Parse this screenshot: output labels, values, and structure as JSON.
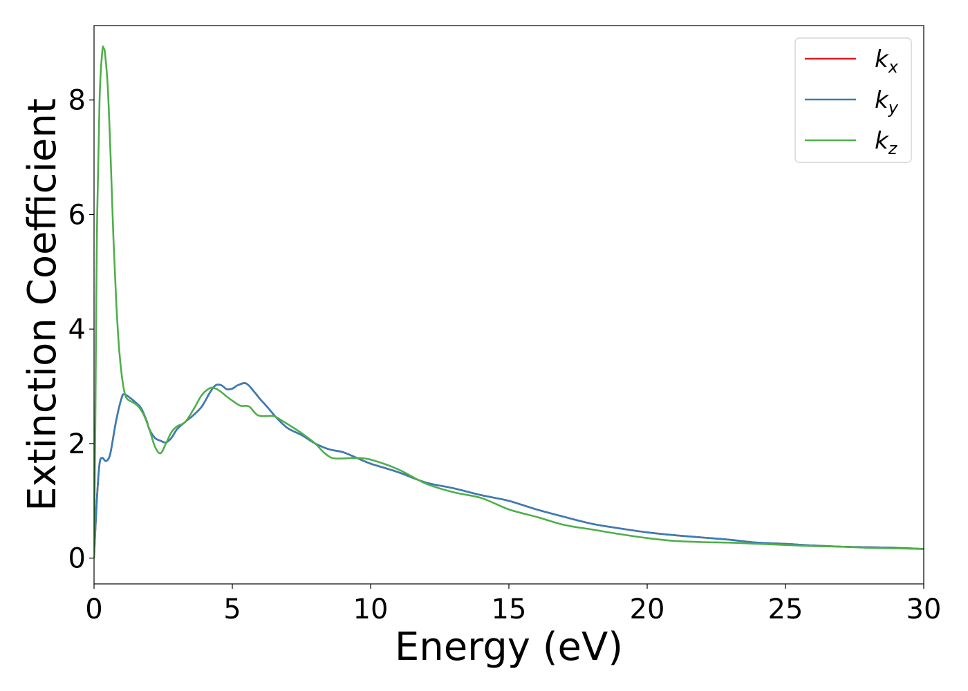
{
  "chart_data": {
    "type": "line",
    "xlabel": "Energy (eV)",
    "ylabel": "Extinction Coefficient",
    "xlim": [
      0,
      30
    ],
    "ylim": [
      -0.45,
      9.3
    ],
    "xticks": [
      0,
      5,
      10,
      15,
      20,
      25,
      30
    ],
    "yticks": [
      0,
      2,
      4,
      6,
      8
    ],
    "grid": false,
    "legend_position": "top-right",
    "series": [
      {
        "name": "k_x",
        "legend_base": "k",
        "legend_sub": "x",
        "color": "#e41a1c",
        "x": [
          0,
          0.1,
          0.2,
          0.3,
          0.4,
          0.5,
          0.6,
          0.8,
          1.0,
          1.1,
          1.3,
          1.5,
          1.7,
          1.9,
          2.0,
          2.2,
          2.4,
          2.6,
          2.8,
          3.0,
          3.3,
          3.6,
          3.9,
          4.2,
          4.4,
          4.6,
          4.8,
          5.0,
          5.2,
          5.5,
          5.8,
          6.0,
          6.3,
          6.6,
          7.0,
          7.5,
          8.0,
          8.5,
          9.0,
          9.5,
          10,
          11,
          12,
          13,
          14,
          15,
          16,
          17,
          18,
          19,
          20,
          21,
          22,
          23,
          24,
          25,
          26,
          27,
          28,
          29,
          30
        ],
        "y": [
          0,
          1.0,
          1.65,
          1.75,
          1.7,
          1.72,
          1.85,
          2.4,
          2.8,
          2.86,
          2.8,
          2.72,
          2.62,
          2.4,
          2.25,
          2.1,
          2.05,
          2.02,
          2.1,
          2.25,
          2.38,
          2.5,
          2.65,
          2.9,
          3.02,
          3.02,
          2.95,
          2.96,
          3.02,
          3.05,
          2.9,
          2.78,
          2.62,
          2.45,
          2.27,
          2.15,
          2.0,
          1.9,
          1.85,
          1.75,
          1.65,
          1.5,
          1.32,
          1.22,
          1.1,
          1.0,
          0.85,
          0.72,
          0.6,
          0.52,
          0.45,
          0.4,
          0.36,
          0.32,
          0.27,
          0.25,
          0.22,
          0.2,
          0.19,
          0.18,
          0.16
        ]
      },
      {
        "name": "k_y",
        "legend_base": "k",
        "legend_sub": "y",
        "color": "#377eb8",
        "x": [
          0,
          0.1,
          0.2,
          0.3,
          0.4,
          0.5,
          0.6,
          0.8,
          1.0,
          1.1,
          1.3,
          1.5,
          1.7,
          1.9,
          2.0,
          2.2,
          2.4,
          2.6,
          2.8,
          3.0,
          3.3,
          3.6,
          3.9,
          4.2,
          4.4,
          4.6,
          4.8,
          5.0,
          5.2,
          5.5,
          5.8,
          6.0,
          6.3,
          6.6,
          7.0,
          7.5,
          8.0,
          8.5,
          9.0,
          9.5,
          10,
          11,
          12,
          13,
          14,
          15,
          16,
          17,
          18,
          19,
          20,
          21,
          22,
          23,
          24,
          25,
          26,
          27,
          28,
          29,
          30
        ],
        "y": [
          0,
          1.0,
          1.65,
          1.75,
          1.7,
          1.72,
          1.85,
          2.4,
          2.8,
          2.86,
          2.8,
          2.72,
          2.62,
          2.4,
          2.25,
          2.1,
          2.05,
          2.02,
          2.1,
          2.25,
          2.38,
          2.5,
          2.65,
          2.9,
          3.02,
          3.02,
          2.95,
          2.96,
          3.02,
          3.05,
          2.9,
          2.78,
          2.62,
          2.45,
          2.27,
          2.15,
          2.0,
          1.9,
          1.85,
          1.75,
          1.65,
          1.5,
          1.32,
          1.22,
          1.1,
          1.0,
          0.85,
          0.72,
          0.6,
          0.52,
          0.45,
          0.4,
          0.36,
          0.32,
          0.27,
          0.25,
          0.22,
          0.2,
          0.19,
          0.18,
          0.16
        ]
      },
      {
        "name": "k_z",
        "legend_base": "k",
        "legend_sub": "z",
        "color": "#4daf4a",
        "x": [
          0,
          0.05,
          0.1,
          0.2,
          0.3,
          0.35,
          0.4,
          0.5,
          0.6,
          0.7,
          0.8,
          0.9,
          1.0,
          1.1,
          1.2,
          1.4,
          1.6,
          1.8,
          2.0,
          2.2,
          2.4,
          2.6,
          2.8,
          3.0,
          3.3,
          3.6,
          3.9,
          4.2,
          4.4,
          4.6,
          4.8,
          5.0,
          5.3,
          5.6,
          5.9,
          6.2,
          6.5,
          6.8,
          7.2,
          7.6,
          8.0,
          8.3,
          8.6,
          9.0,
          9.5,
          10,
          11,
          12,
          13,
          14,
          15,
          16,
          17,
          18,
          19,
          20,
          21,
          22,
          23,
          24,
          25,
          26,
          27,
          28,
          29,
          30
        ],
        "y": [
          0,
          2.5,
          5.5,
          8.0,
          8.85,
          8.9,
          8.8,
          8.2,
          7.0,
          5.6,
          4.5,
          3.7,
          3.2,
          2.9,
          2.78,
          2.72,
          2.65,
          2.5,
          2.25,
          1.95,
          1.83,
          2.0,
          2.2,
          2.3,
          2.38,
          2.6,
          2.85,
          2.97,
          2.96,
          2.9,
          2.82,
          2.75,
          2.66,
          2.65,
          2.5,
          2.48,
          2.48,
          2.4,
          2.28,
          2.15,
          2.0,
          1.85,
          1.75,
          1.74,
          1.75,
          1.72,
          1.55,
          1.3,
          1.15,
          1.05,
          0.85,
          0.72,
          0.58,
          0.5,
          0.42,
          0.35,
          0.3,
          0.28,
          0.27,
          0.25,
          0.23,
          0.21,
          0.2,
          0.18,
          0.17,
          0.16
        ]
      }
    ]
  }
}
